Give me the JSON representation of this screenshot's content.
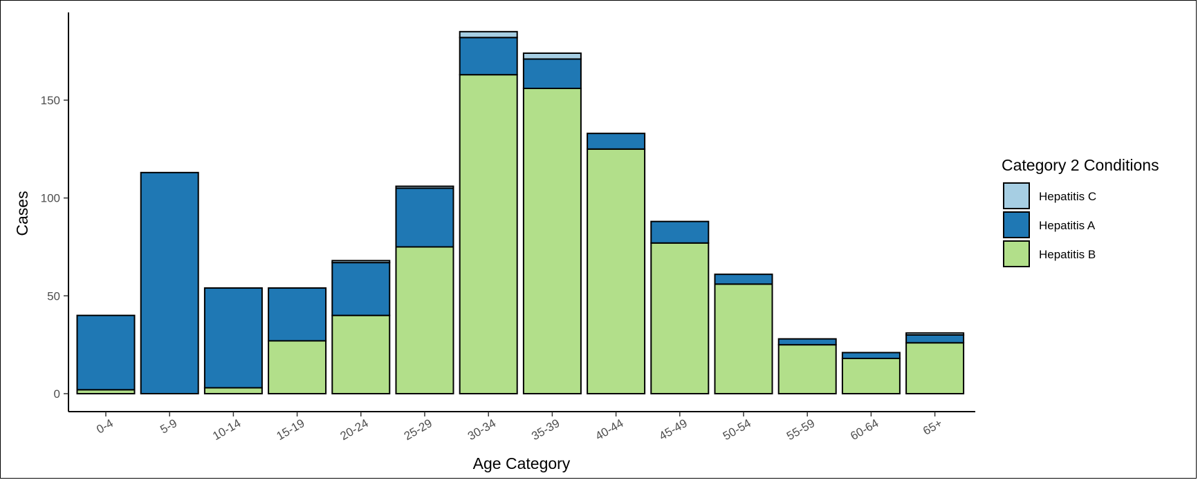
{
  "chart_data": {
    "type": "bar",
    "stacked": true,
    "title": "",
    "xlabel": "Age Category",
    "ylabel": "Cases",
    "ylim": [
      0,
      190
    ],
    "yticks": [
      0,
      50,
      100,
      150
    ],
    "grid": false,
    "legend_position": "right",
    "legend_title": "Category 2 Conditions",
    "categories": [
      "0-4",
      "5-9",
      "10-14",
      "15-19",
      "20-24",
      "25-29",
      "30-34",
      "35-39",
      "40-44",
      "45-49",
      "50-54",
      "55-59",
      "60-64",
      "65+"
    ],
    "series": [
      {
        "name": "Hepatitis B",
        "color": "#b2df8a",
        "values": [
          2,
          0,
          3,
          27,
          40,
          75,
          163,
          156,
          125,
          77,
          56,
          25,
          18,
          26
        ]
      },
      {
        "name": "Hepatitis A",
        "color": "#1f78b4",
        "values": [
          38,
          113,
          51,
          27,
          27,
          30,
          19,
          15,
          8,
          11,
          5,
          3,
          3,
          4
        ]
      },
      {
        "name": "Hepatitis C",
        "color": "#a6cee3",
        "values": [
          0,
          0,
          0,
          0,
          1,
          1,
          3,
          3,
          0,
          0,
          0,
          0,
          0,
          1
        ]
      }
    ],
    "legend_order": [
      "Hepatitis C",
      "Hepatitis A",
      "Hepatitis B"
    ]
  }
}
